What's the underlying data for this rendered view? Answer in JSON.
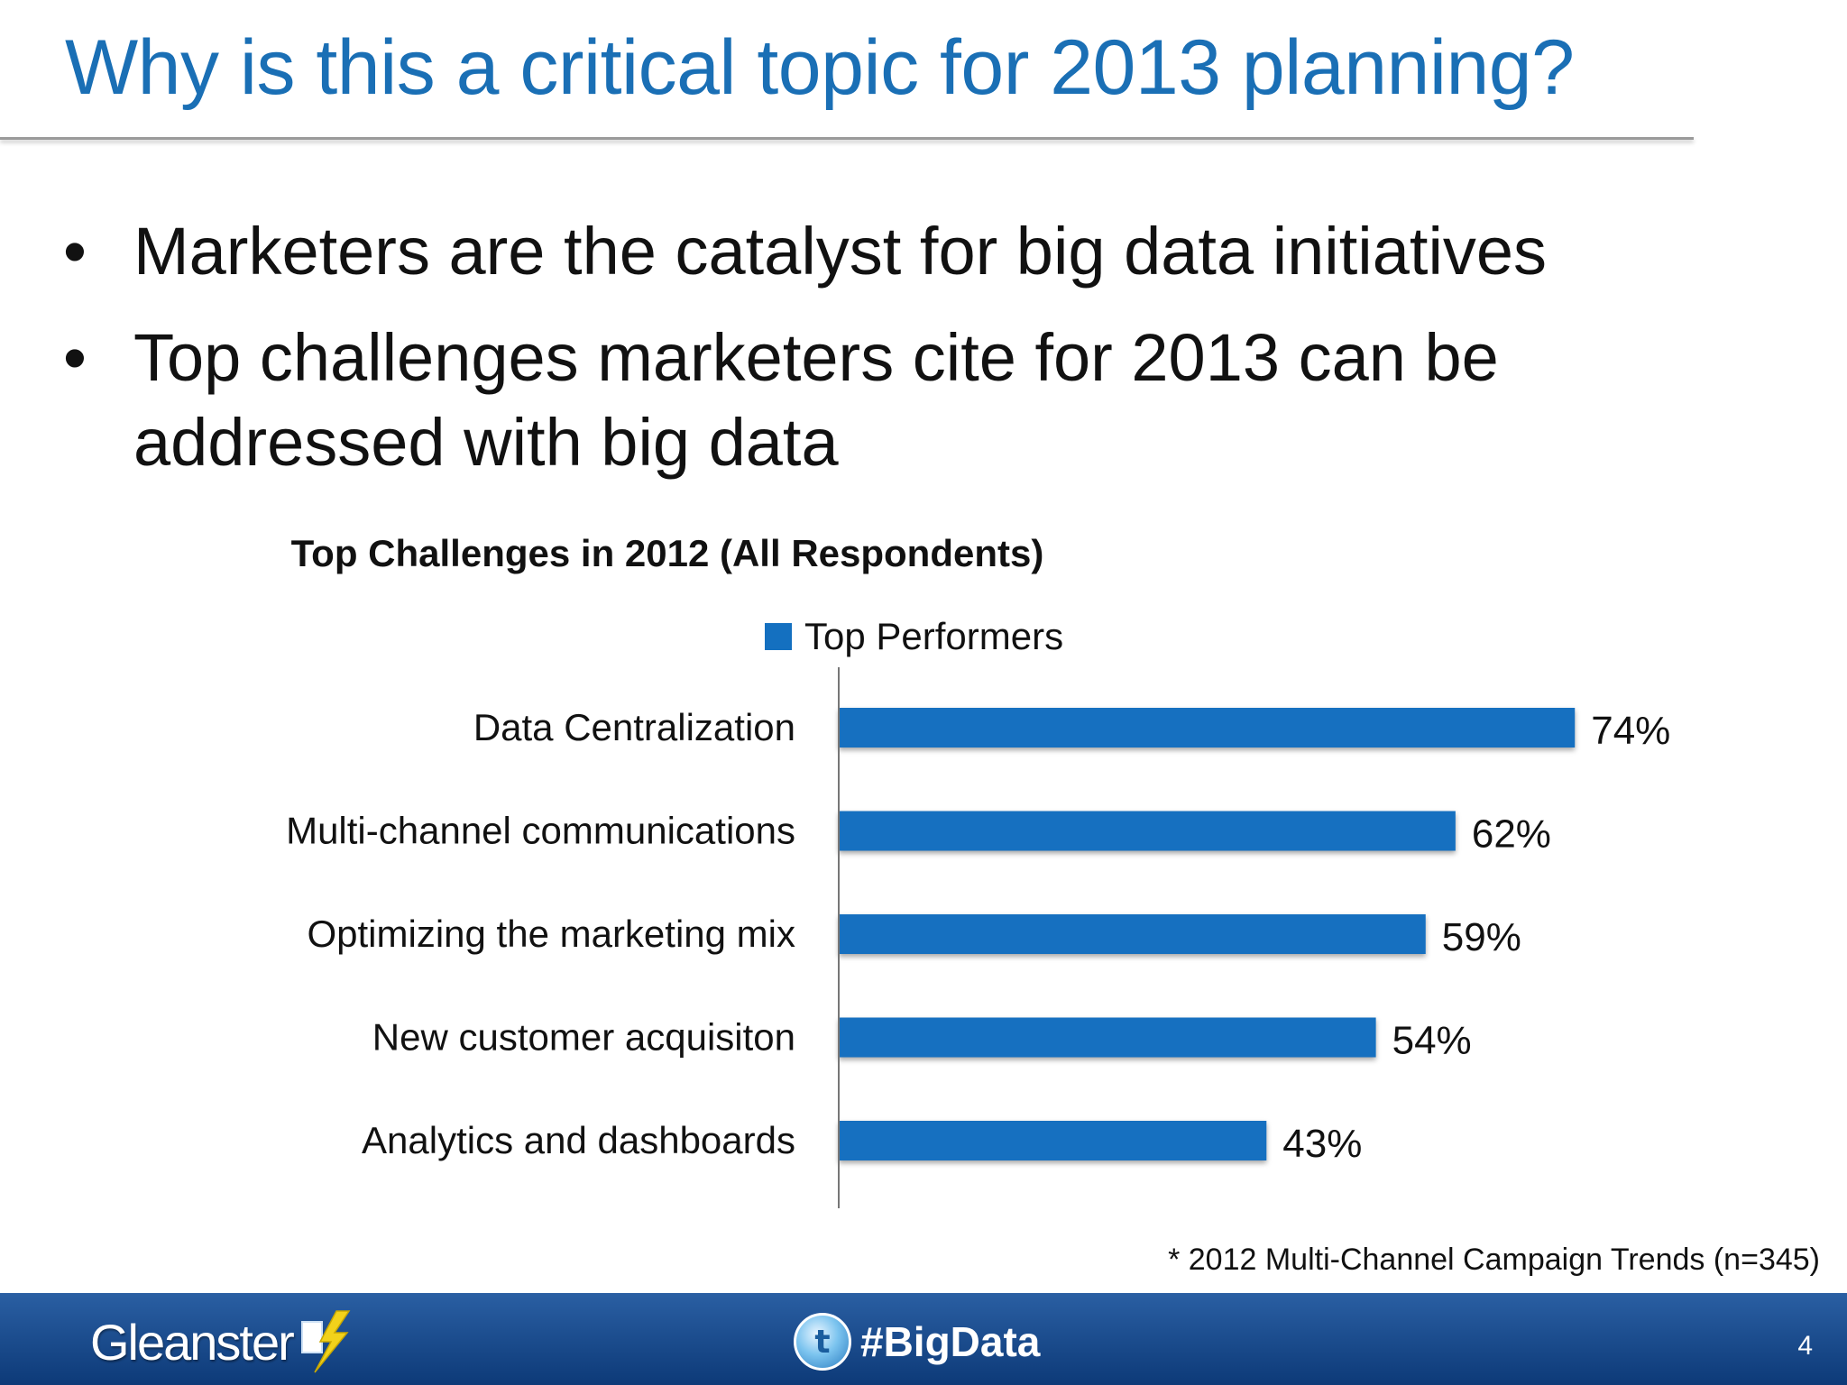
{
  "slide": {
    "title": "Why is this a critical topic for 2013 planning?",
    "bullets": [
      "Marketers are the catalyst for big data initiatives",
      "Top challenges marketers cite for 2013 can be addressed with big data"
    ],
    "bullet_glyph": "•",
    "footnote": "* 2012 Multi-Channel Campaign Trends (n=345)"
  },
  "chart_data": {
    "type": "bar",
    "orientation": "horizontal",
    "title": "Top Challenges in 2012 (All Respondents)",
    "categories": [
      "Data Centralization",
      "Multi-channel communications",
      "Optimizing the marketing mix",
      "New customer acquisiton",
      "Analytics and dashboards"
    ],
    "series": [
      {
        "name": "Top Performers",
        "values": [
          74,
          62,
          59,
          54,
          43
        ],
        "color": "#1470c0"
      }
    ],
    "data_labels": [
      "74%",
      "62%",
      "59%",
      "54%",
      "43%"
    ],
    "xlim": [
      0,
      100
    ],
    "grid": false,
    "legend": "top-center"
  },
  "footer": {
    "brand": "Gleanster",
    "hashtag": "#BigData",
    "twitter_icon_glyph": "t",
    "page_number": "4",
    "background": "#1f4f91"
  }
}
